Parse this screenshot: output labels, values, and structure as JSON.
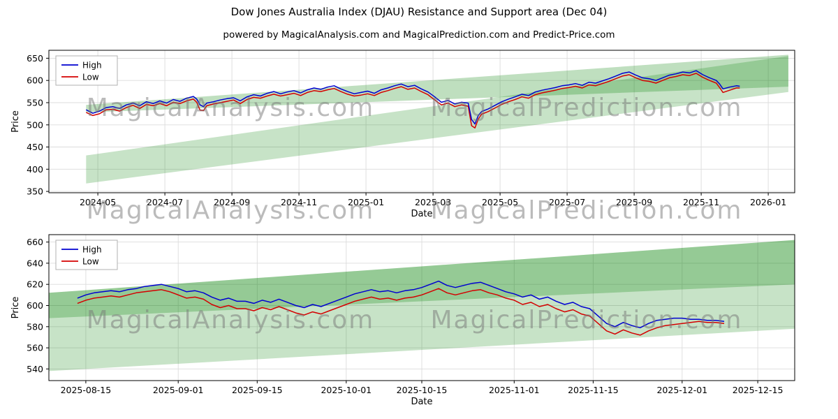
{
  "header": {
    "title": "Dow Jones Australia Index (DJAU) Resistance and Support area (Dec 04)",
    "subtitle": "powered by MagicalAnalysis.com and MagicalPrediction.com and Predict-Price.com"
  },
  "watermarks": {
    "analysis": "MagicalAnalysis.com",
    "prediction": "MagicalPrediction.com"
  },
  "chart_data": [
    {
      "type": "line",
      "xlabel": "Date",
      "ylabel": "Price",
      "x_unit": "months since 2024-04-01",
      "xlim": [
        -0.46,
        21.79
      ],
      "ylim": [
        347,
        668
      ],
      "xticks": {
        "pos": [
          1,
          3,
          5,
          7,
          9,
          11,
          13,
          15,
          17,
          19,
          21
        ],
        "labels": [
          "2024-05",
          "2024-07",
          "2024-09",
          "2024-11",
          "2025-01",
          "2025-03",
          "2025-05",
          "2025-07",
          "2025-09",
          "2025-11",
          "2026-01"
        ]
      },
      "yticks": [
        350,
        400,
        450,
        500,
        550,
        600,
        650
      ],
      "grid": true,
      "legend_position": "upper-left",
      "legend": [
        {
          "label": "High",
          "color": "#0000d0"
        },
        {
          "label": "Low",
          "color": "#d40000"
        }
      ],
      "band_color": "#008000",
      "bands": [
        {
          "opacity": 0.22,
          "poly": [
            [
              0.65,
              368
            ],
            [
              21.6,
              574
            ],
            [
              21.6,
              655
            ],
            [
              0.65,
              431
            ]
          ]
        },
        {
          "opacity": 0.25,
          "poly": [
            [
              0.65,
              528
            ],
            [
              21.6,
              586
            ],
            [
              21.6,
              658
            ],
            [
              0.65,
              545
            ]
          ]
        }
      ],
      "x": [
        0.65,
        0.85,
        1.05,
        1.25,
        1.45,
        1.65,
        1.85,
        2.05,
        2.25,
        2.45,
        2.65,
        2.85,
        3.05,
        3.25,
        3.45,
        3.65,
        3.85,
        3.95,
        4.05,
        4.15,
        4.25,
        4.45,
        4.65,
        4.85,
        5.05,
        5.25,
        5.45,
        5.65,
        5.85,
        6.05,
        6.25,
        6.45,
        6.65,
        6.85,
        7.05,
        7.25,
        7.45,
        7.65,
        7.85,
        8.05,
        8.25,
        8.45,
        8.65,
        8.85,
        9.05,
        9.25,
        9.45,
        9.65,
        9.85,
        10.05,
        10.25,
        10.45,
        10.65,
        10.85,
        11.05,
        11.25,
        11.45,
        11.65,
        11.85,
        12.05,
        12.15,
        12.25,
        12.35,
        12.45,
        12.65,
        12.85,
        13.05,
        13.25,
        13.45,
        13.65,
        13.85,
        14.05,
        14.25,
        14.45,
        14.65,
        14.85,
        15.05,
        15.25,
        15.45,
        15.65,
        15.85,
        16.05,
        16.25,
        16.45,
        16.65,
        16.85,
        17.05,
        17.25,
        17.45,
        17.65,
        17.85,
        18.05,
        18.25,
        18.45,
        18.65,
        18.85,
        19.05,
        19.25,
        19.45,
        19.55,
        19.65,
        19.85,
        20.05,
        20.15
      ],
      "series": [
        {
          "name": "High",
          "color": "#0000d0",
          "values": [
            534,
            526,
            531,
            539,
            541,
            537,
            545,
            549,
            543,
            552,
            548,
            554,
            549,
            557,
            553,
            560,
            564,
            558,
            545,
            541,
            549,
            552,
            556,
            559,
            561,
            554,
            563,
            568,
            565,
            571,
            575,
            570,
            574,
            577,
            572,
            579,
            583,
            580,
            585,
            588,
            581,
            575,
            570,
            573,
            576,
            571,
            579,
            583,
            588,
            592,
            586,
            589,
            581,
            574,
            563,
            551,
            555,
            547,
            551,
            549,
            512,
            502,
            521,
            530,
            536,
            544,
            552,
            558,
            563,
            569,
            566,
            574,
            578,
            581,
            584,
            588,
            590,
            593,
            589,
            596,
            594,
            599,
            604,
            610,
            616,
            619,
            612,
            606,
            604,
            600,
            606,
            612,
            615,
            619,
            617,
            622,
            613,
            606,
            600,
            592,
            581,
            585,
            588,
            587
          ]
        },
        {
          "name": "Low",
          "color": "#d40000",
          "values": [
            528,
            521,
            525,
            534,
            535,
            531,
            539,
            544,
            537,
            546,
            543,
            548,
            543,
            551,
            548,
            554,
            558,
            551,
            533,
            532,
            543,
            547,
            550,
            553,
            556,
            548,
            557,
            562,
            560,
            565,
            569,
            565,
            568,
            571,
            566,
            573,
            577,
            575,
            579,
            582,
            575,
            569,
            565,
            567,
            570,
            566,
            573,
            577,
            582,
            586,
            580,
            583,
            575,
            568,
            556,
            545,
            549,
            541,
            545,
            542,
            498,
            493,
            513,
            524,
            530,
            538,
            546,
            552,
            557,
            563,
            560,
            568,
            572,
            575,
            578,
            582,
            584,
            587,
            583,
            590,
            588,
            593,
            598,
            604,
            610,
            613,
            606,
            600,
            598,
            594,
            600,
            606,
            609,
            613,
            611,
            616,
            607,
            600,
            594,
            584,
            573,
            578,
            583,
            583
          ]
        }
      ]
    },
    {
      "type": "line",
      "xlabel": "Date",
      "ylabel": "Price",
      "x_unit": "months since 2024-04-01",
      "xlim": [
        16.23,
        20.67
      ],
      "ylim": [
        529,
        667
      ],
      "xticks": {
        "pos": [
          16.45,
          17.0,
          17.47,
          18.0,
          18.45,
          19.0,
          19.47,
          20.0,
          20.45
        ],
        "labels": [
          "2025-08-15",
          "2025-09-01",
          "2025-09-15",
          "2025-10-01",
          "2025-10-15",
          "2025-11-01",
          "2025-11-15",
          "2025-12-01",
          "2025-12-15"
        ]
      },
      "yticks": [
        540,
        560,
        580,
        600,
        620,
        640,
        660
      ],
      "grid": true,
      "legend_position": "upper-left",
      "legend": [
        {
          "label": "High",
          "color": "#0000d0"
        },
        {
          "label": "Low",
          "color": "#d40000"
        }
      ],
      "band_color": "#008000",
      "bands": [
        {
          "opacity": 0.22,
          "poly": [
            [
              16.23,
              538
            ],
            [
              20.67,
              578
            ],
            [
              20.67,
              662
            ],
            [
              16.23,
              612
            ]
          ]
        },
        {
          "opacity": 0.25,
          "poly": [
            [
              16.23,
              588
            ],
            [
              20.67,
              620
            ],
            [
              20.67,
              662
            ],
            [
              16.23,
              612
            ]
          ]
        }
      ],
      "x": [
        16.4,
        16.45,
        16.5,
        16.55,
        16.6,
        16.65,
        16.7,
        16.75,
        16.8,
        16.85,
        16.9,
        16.95,
        17.0,
        17.05,
        17.1,
        17.15,
        17.2,
        17.25,
        17.3,
        17.35,
        17.4,
        17.45,
        17.5,
        17.55,
        17.6,
        17.65,
        17.7,
        17.75,
        17.8,
        17.85,
        17.9,
        17.95,
        18.0,
        18.05,
        18.1,
        18.15,
        18.2,
        18.25,
        18.3,
        18.35,
        18.4,
        18.45,
        18.5,
        18.55,
        18.6,
        18.65,
        18.7,
        18.75,
        18.8,
        18.85,
        18.9,
        18.95,
        19.0,
        19.05,
        19.1,
        19.15,
        19.2,
        19.25,
        19.3,
        19.35,
        19.4,
        19.45,
        19.5,
        19.55,
        19.6,
        19.65,
        19.7,
        19.75,
        19.8,
        19.85,
        19.9,
        19.95,
        20.0,
        20.05,
        20.1,
        20.15,
        20.2,
        20.25
      ],
      "series": [
        {
          "name": "High",
          "color": "#0000d0",
          "values": [
            607,
            610,
            612,
            613,
            614,
            613,
            615,
            616,
            618,
            619,
            620,
            618,
            616,
            613,
            614,
            612,
            608,
            605,
            607,
            604,
            604,
            602,
            605,
            603,
            606,
            603,
            600,
            598,
            601,
            599,
            602,
            605,
            608,
            611,
            613,
            615,
            613,
            614,
            612,
            614,
            615,
            617,
            620,
            623,
            619,
            617,
            619,
            621,
            622,
            619,
            616,
            613,
            611,
            608,
            610,
            606,
            608,
            604,
            601,
            603,
            599,
            597,
            590,
            583,
            580,
            584,
            581,
            579,
            583,
            586,
            587,
            588,
            588,
            587,
            587,
            586,
            586,
            585
          ]
        },
        {
          "name": "Low",
          "color": "#d40000",
          "values": [
            602,
            605,
            607,
            608,
            609,
            608,
            610,
            612,
            613,
            614,
            615,
            613,
            610,
            607,
            608,
            606,
            601,
            598,
            600,
            597,
            597,
            595,
            598,
            596,
            599,
            596,
            593,
            591,
            594,
            592,
            595,
            598,
            601,
            604,
            606,
            608,
            606,
            607,
            605,
            607,
            608,
            610,
            613,
            616,
            612,
            610,
            612,
            614,
            615,
            612,
            610,
            607,
            605,
            601,
            603,
            599,
            601,
            597,
            594,
            596,
            592,
            590,
            583,
            576,
            573,
            577,
            574,
            572,
            576,
            579,
            581,
            582,
            583,
            584,
            585,
            584,
            584,
            583
          ]
        }
      ]
    }
  ]
}
